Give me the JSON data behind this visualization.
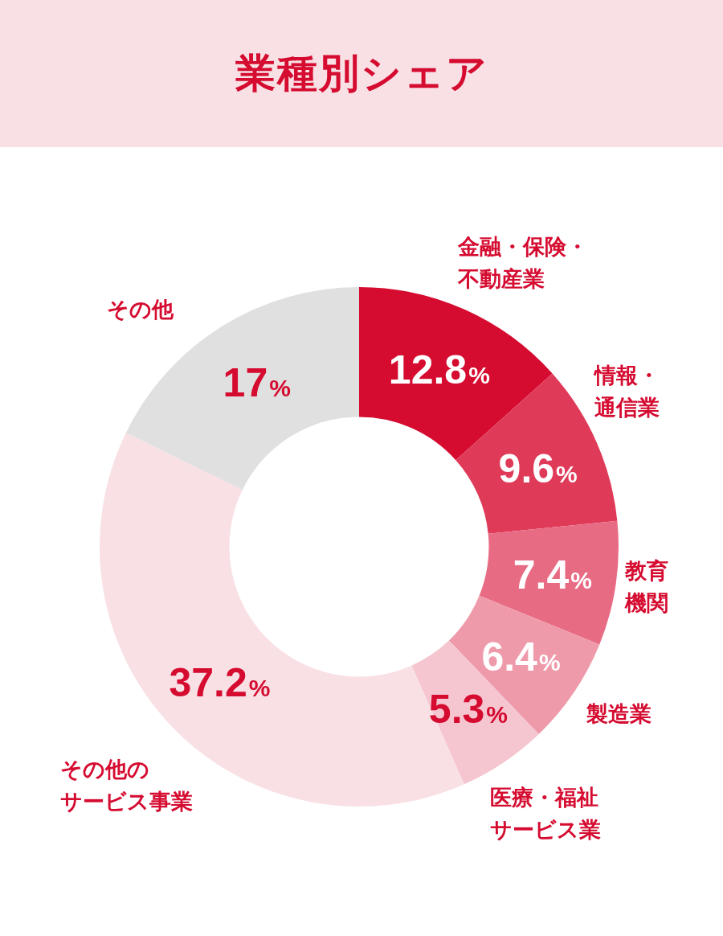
{
  "chart_data": {
    "type": "donut",
    "title": "業種別シェア",
    "categories": [
      "金融・保険・不動産業",
      "情報・通信業",
      "教育機関",
      "製造業",
      "医療・福祉サービス業",
      "その他のサービス事業",
      "その他"
    ],
    "values": [
      12.8,
      9.6,
      7.4,
      6.4,
      5.3,
      37.2,
      17
    ],
    "colors": [
      "#d50b30",
      "#e03a59",
      "#e86b84",
      "#ef9aab",
      "#f5c6d0",
      "#f9e0e5",
      "#e0e0e0"
    ],
    "value_labels": [
      "12.8%",
      "9.6%",
      "7.4%",
      "6.4%",
      "5.3%",
      "37.2%",
      "17%"
    ],
    "legend": false
  }
}
